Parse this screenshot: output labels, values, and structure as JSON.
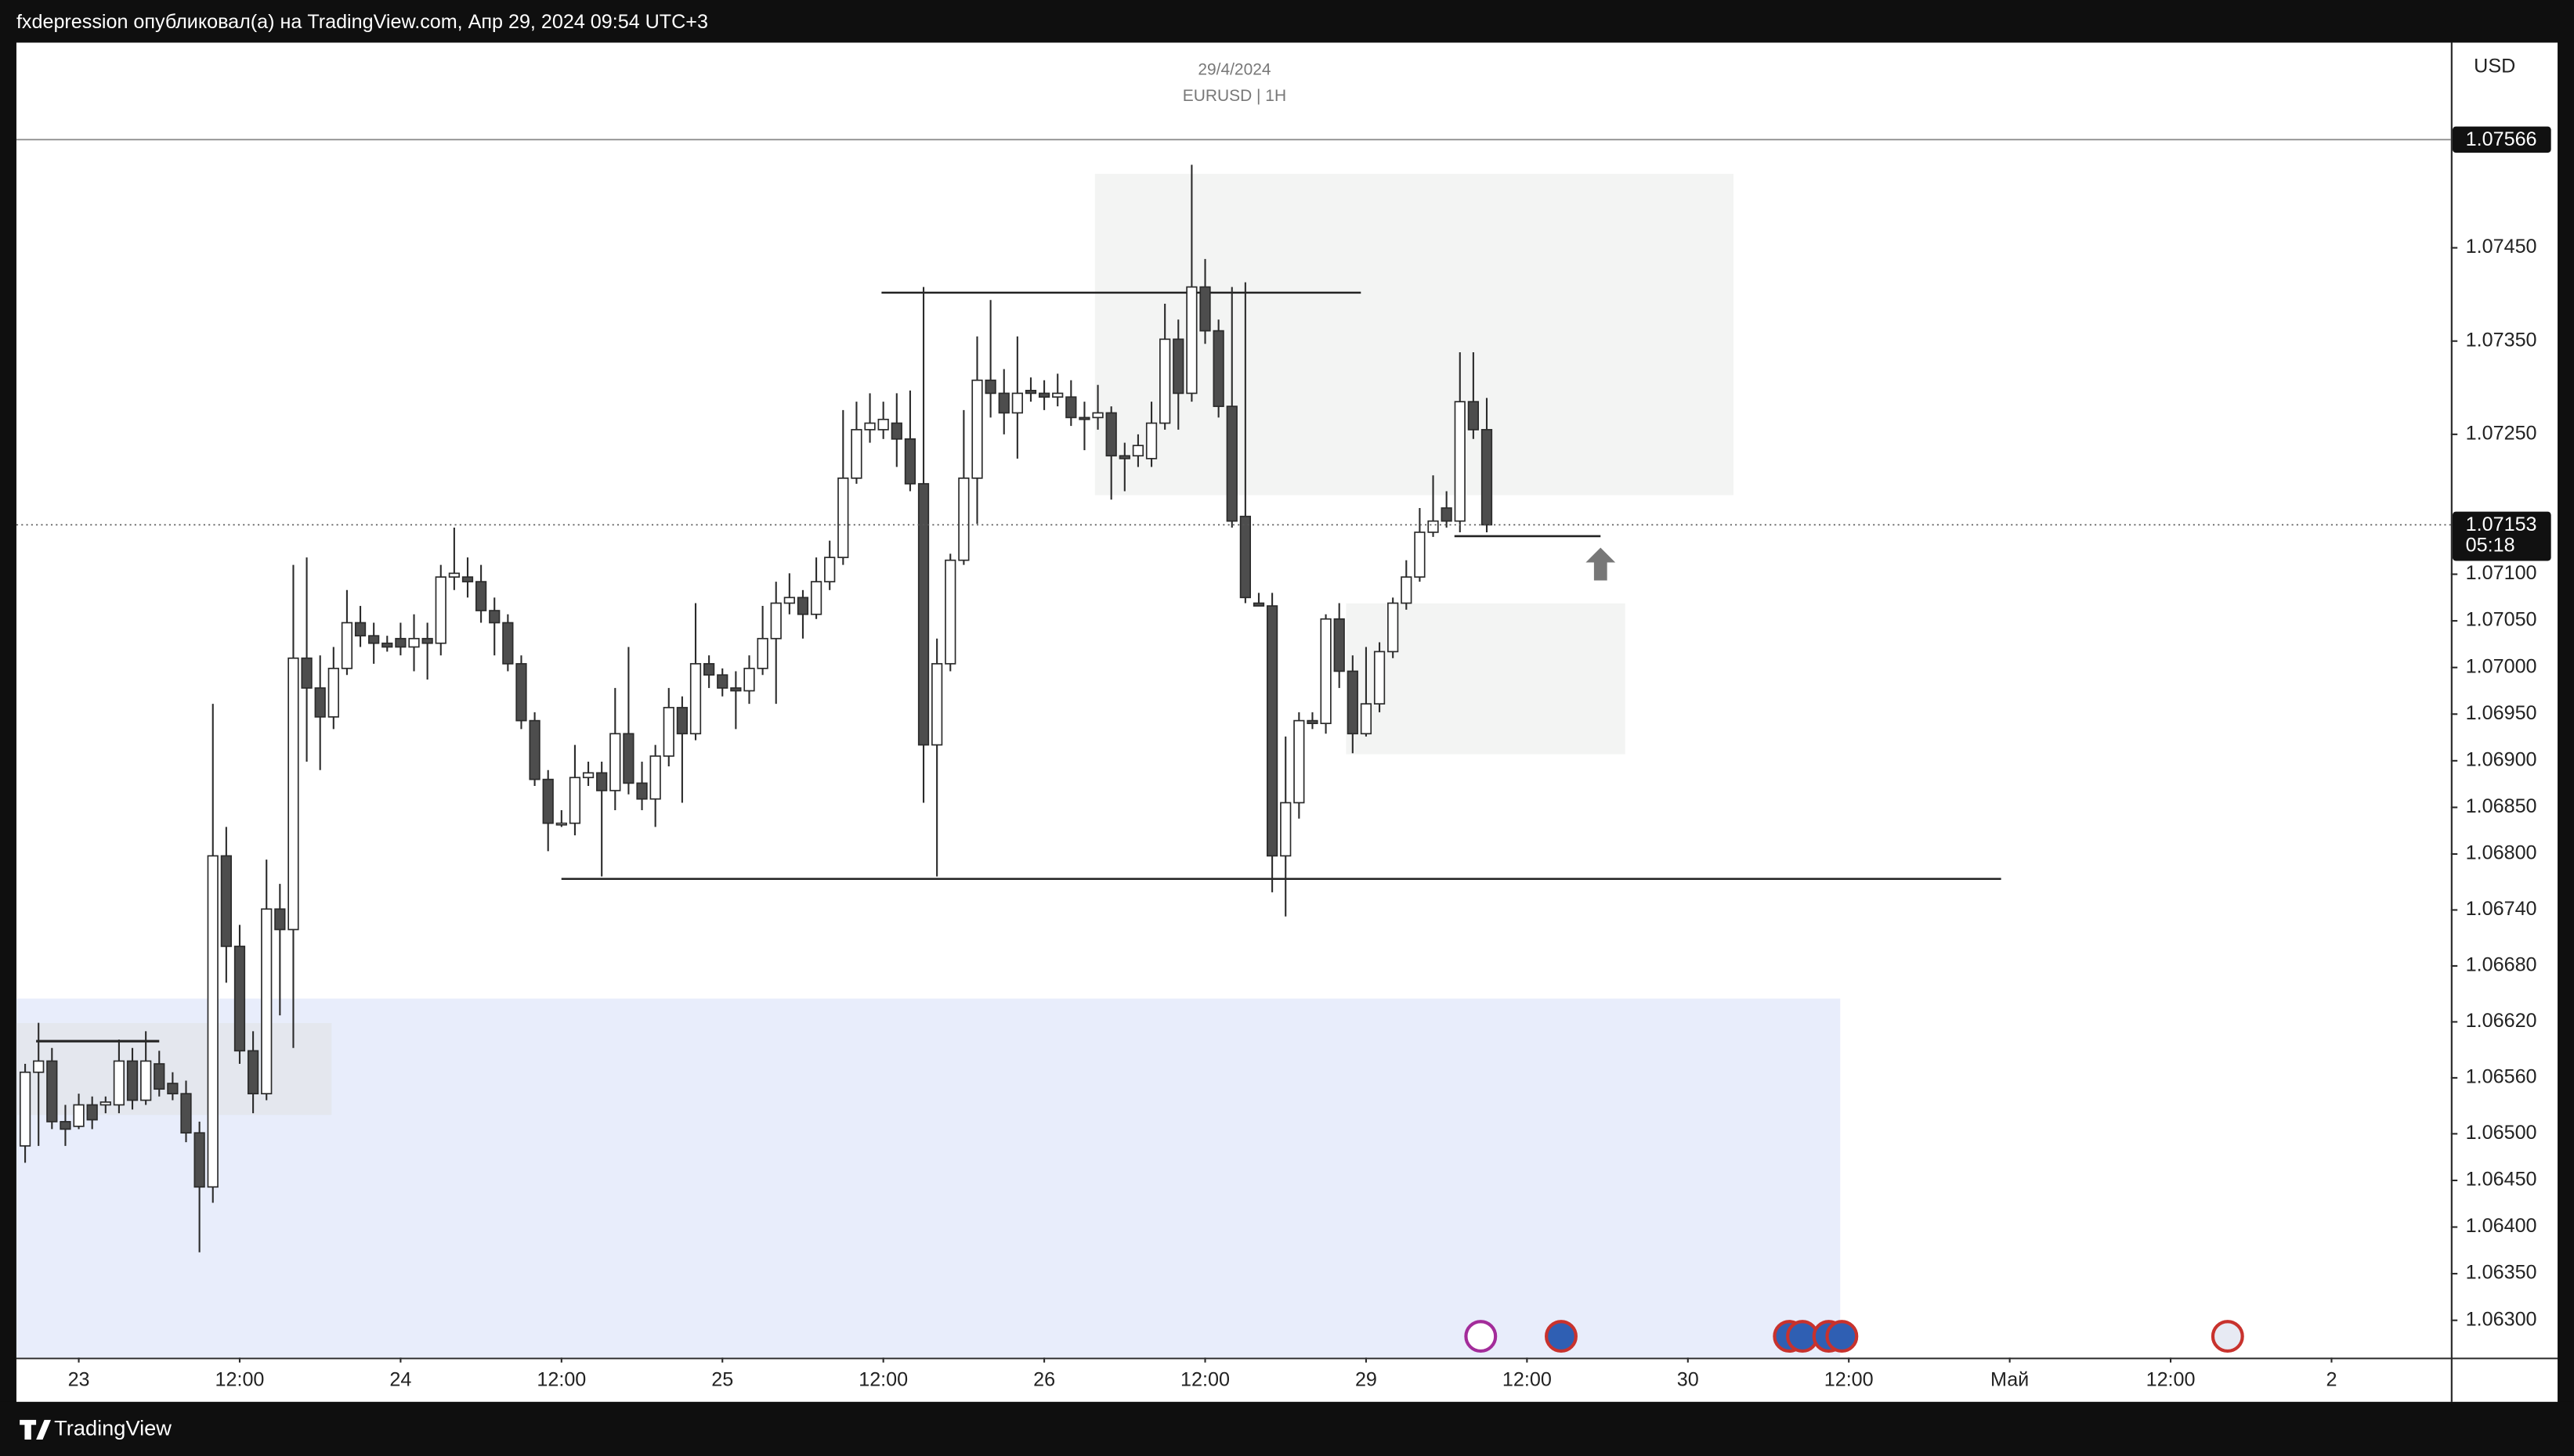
{
  "header": {
    "text": "fxdepression опубликовал(а) на TradingView.com, Апр 29, 2024 09:54 UTC+3"
  },
  "footer": {
    "brand": "TradingView"
  },
  "chart_data": {
    "type": "candlestick",
    "title": "29/4/2024",
    "subtitle": "EURUSD | 1H",
    "currency": "USD",
    "up_color": "#ffffff",
    "down_color": "#4d4d4d",
    "wick_color": "#2b2b2b",
    "grid": false,
    "xlim": [
      -4.65,
      176.9
    ],
    "ylim": [
      1.0626,
      1.0767
    ],
    "xticks": [
      {
        "value": 0,
        "label": "23"
      },
      {
        "value": 12,
        "label": "12:00"
      },
      {
        "value": 24,
        "label": "24"
      },
      {
        "value": 36,
        "label": "12:00"
      },
      {
        "value": 48,
        "label": "25"
      },
      {
        "value": 60,
        "label": "12:00"
      },
      {
        "value": 72,
        "label": "26"
      },
      {
        "value": 84,
        "label": "12:00"
      },
      {
        "value": 96,
        "label": "29"
      },
      {
        "value": 108,
        "label": "12:00"
      },
      {
        "value": 120,
        "label": "30"
      },
      {
        "value": 132,
        "label": "12:00"
      },
      {
        "value": 144,
        "label": "Май"
      },
      {
        "value": 156,
        "label": "12:00"
      },
      {
        "value": 168,
        "label": "2"
      }
    ],
    "yticks": [
      {
        "value": 1.0745,
        "label": "1.07450"
      },
      {
        "value": 1.0735,
        "label": "1.07350"
      },
      {
        "value": 1.0725,
        "label": "1.07250"
      },
      {
        "value": 1.071,
        "label": "1.07100"
      },
      {
        "value": 1.0705,
        "label": "1.07050"
      },
      {
        "value": 1.07,
        "label": "1.07000"
      },
      {
        "value": 1.0695,
        "label": "1.06950"
      },
      {
        "value": 1.069,
        "label": "1.06900"
      },
      {
        "value": 1.0685,
        "label": "1.06850"
      },
      {
        "value": 1.068,
        "label": "1.06800"
      },
      {
        "value": 1.0674,
        "label": "1.06740"
      },
      {
        "value": 1.0668,
        "label": "1.06680"
      },
      {
        "value": 1.0662,
        "label": "1.06620"
      },
      {
        "value": 1.0656,
        "label": "1.06560"
      },
      {
        "value": 1.065,
        "label": "1.06500"
      },
      {
        "value": 1.0645,
        "label": "1.06450"
      },
      {
        "value": 1.064,
        "label": "1.06400"
      },
      {
        "value": 1.0635,
        "label": "1.06350"
      },
      {
        "value": 1.063,
        "label": "1.06300"
      }
    ],
    "price_line": {
      "value": 1.07566,
      "label": "1.07566"
    },
    "last_price": {
      "value": 1.07153,
      "label": "1.07153",
      "countdown": "05:18"
    },
    "x": [
      -4,
      -3,
      -2,
      -1,
      0,
      1,
      2,
      3,
      4,
      5,
      6,
      7,
      8,
      9,
      10,
      11,
      12,
      13,
      14,
      15,
      16,
      17,
      18,
      19,
      20,
      21,
      22,
      23,
      24,
      25,
      26,
      27,
      28,
      29,
      30,
      31,
      32,
      33,
      34,
      35,
      36,
      37,
      38,
      39,
      40,
      41,
      42,
      43,
      44,
      45,
      46,
      47,
      48,
      49,
      50,
      51,
      52,
      53,
      54,
      55,
      56,
      57,
      58,
      59,
      60,
      61,
      62,
      63,
      64,
      65,
      66,
      67,
      68,
      69,
      70,
      71,
      72,
      73,
      74,
      75,
      76,
      77,
      78,
      79,
      80,
      81,
      82,
      83,
      84,
      85,
      86,
      87,
      88,
      89,
      90,
      91,
      92,
      93,
      94,
      95,
      96,
      97,
      98,
      99,
      100,
      101,
      102,
      103,
      104,
      105
    ],
    "open": [
      1.06487,
      1.06566,
      1.06578,
      1.06513,
      1.06508,
      1.06531,
      1.06531,
      1.06531,
      1.06578,
      1.06536,
      1.06575,
      1.06554,
      1.06543,
      1.06501,
      1.06443,
      1.06798,
      1.06701,
      1.06589,
      1.06543,
      1.06741,
      1.06719,
      1.0701,
      1.06978,
      1.06947,
      1.06999,
      1.07048,
      1.07034,
      1.07026,
      1.07031,
      1.07022,
      1.07031,
      1.07026,
      1.07097,
      1.07097,
      1.07092,
      1.07061,
      1.07048,
      1.07004,
      1.06943,
      1.0688,
      1.06833,
      1.06833,
      1.06882,
      1.06887,
      1.06868,
      1.06929,
      1.06876,
      1.06859,
      1.06905,
      1.06957,
      1.06929,
      1.07004,
      1.06992,
      1.06978,
      1.06975,
      1.06999,
      1.07031,
      1.07069,
      1.07075,
      1.07057,
      1.07092,
      1.07118,
      1.07203,
      1.07255,
      1.07255,
      1.07262,
      1.07245,
      1.07197,
      1.06917,
      1.07004,
      1.07115,
      1.07203,
      1.07308,
      1.07294,
      1.07273,
      1.07297,
      1.07294,
      1.0729,
      1.0729,
      1.07268,
      1.07268,
      1.07273,
      1.07227,
      1.07227,
      1.07224,
      1.07262,
      1.07352,
      1.07294,
      1.07408,
      1.07361,
      1.0728,
      1.07162,
      1.07069,
      1.07066,
      1.06798,
      1.06855,
      1.06943,
      1.0694,
      1.07052,
      1.06996,
      1.06929,
      1.06961,
      1.07017,
      1.07069,
      1.07097,
      1.07145,
      1.07171,
      1.07157,
      1.07285,
      1.07255
    ],
    "high": [
      1.06575,
      1.06619,
      1.06592,
      1.06531,
      1.06543,
      1.0654,
      1.0654,
      1.06601,
      1.06592,
      1.0661,
      1.06589,
      1.06566,
      1.06557,
      1.06513,
      1.06961,
      1.06829,
      1.06724,
      1.0661,
      1.06794,
      1.06768,
      1.0711,
      1.07118,
      1.07013,
      1.07022,
      1.07083,
      1.07066,
      1.07048,
      1.07034,
      1.07048,
      1.07057,
      1.07048,
      1.0711,
      1.0715,
      1.07118,
      1.0711,
      1.07075,
      1.07057,
      1.07013,
      1.06952,
      1.0689,
      1.06847,
      1.06917,
      1.06899,
      1.06899,
      1.06978,
      1.07022,
      1.06899,
      1.06917,
      1.06978,
      1.06969,
      1.07069,
      1.07013,
      1.06999,
      1.06996,
      1.07013,
      1.07066,
      1.07092,
      1.07101,
      1.07083,
      1.07118,
      1.07136,
      1.07276,
      1.07285,
      1.07294,
      1.07285,
      1.07294,
      1.07297,
      1.07408,
      1.07031,
      1.07122,
      1.07276,
      1.07355,
      1.07394,
      1.0732,
      1.07355,
      1.07311,
      1.07308,
      1.07315,
      1.07308,
      1.07285,
      1.07303,
      1.0728,
      1.07241,
      1.0725,
      1.07285,
      1.0739,
      1.07373,
      1.07539,
      1.07438,
      1.07373,
      1.07408,
      1.07413,
      1.0708,
      1.0708,
      1.06926,
      1.06952,
      1.06952,
      1.07057,
      1.07069,
      1.07013,
      1.07022,
      1.07027,
      1.07075,
      1.07115,
      1.07171,
      1.07206,
      1.07189,
      1.07338,
      1.07338,
      1.07289
    ],
    "low": [
      1.06469,
      1.06487,
      1.06505,
      1.06487,
      1.06505,
      1.06505,
      1.06522,
      1.06522,
      1.06526,
      1.06531,
      1.0654,
      1.06536,
      1.06491,
      1.06373,
      1.06426,
      1.06662,
      1.06575,
      1.06522,
      1.06536,
      1.06627,
      1.06592,
      1.06899,
      1.0689,
      1.06934,
      1.06992,
      1.07022,
      1.07004,
      1.07017,
      1.07013,
      1.06996,
      1.06987,
      1.07013,
      1.07083,
      1.07075,
      1.07048,
      1.07013,
      1.06996,
      1.06934,
      1.06873,
      1.06803,
      1.06829,
      1.0682,
      1.06873,
      1.06776,
      1.06847,
      1.06864,
      1.06847,
      1.06829,
      1.06894,
      1.06855,
      1.06922,
      1.06978,
      1.06969,
      1.06934,
      1.06961,
      1.06992,
      1.06961,
      1.07057,
      1.07031,
      1.07052,
      1.07083,
      1.0711,
      1.07197,
      1.07241,
      1.07245,
      1.07215,
      1.07189,
      1.06855,
      1.06776,
      1.06996,
      1.0711,
      1.07154,
      1.07268,
      1.0725,
      1.07224,
      1.07285,
      1.07276,
      1.0728,
      1.07259,
      1.07233,
      1.07255,
      1.0718,
      1.07189,
      1.07215,
      1.07215,
      1.07255,
      1.07255,
      1.07285,
      1.07347,
      1.07268,
      1.0715,
      1.07069,
      1.07066,
      1.06759,
      1.06733,
      1.06838,
      1.06934,
      1.06929,
      1.06978,
      1.06908,
      1.06926,
      1.06952,
      1.0701,
      1.07062,
      1.07092,
      1.0714,
      1.0715,
      1.07145,
      1.07245,
      1.07145
    ],
    "close": [
      1.06566,
      1.06578,
      1.06513,
      1.06505,
      1.06531,
      1.06515,
      1.06534,
      1.06578,
      1.06536,
      1.06578,
      1.06548,
      1.06543,
      1.06501,
      1.06443,
      1.06798,
      1.06701,
      1.06589,
      1.06543,
      1.06741,
      1.06719,
      1.0701,
      1.06978,
      1.06947,
      1.06999,
      1.07048,
      1.07034,
      1.07026,
      1.07022,
      1.07022,
      1.07031,
      1.07026,
      1.07097,
      1.07101,
      1.07092,
      1.07061,
      1.07048,
      1.07004,
      1.06943,
      1.0688,
      1.06833,
      1.06833,
      1.06882,
      1.06887,
      1.06868,
      1.06929,
      1.06876,
      1.06859,
      1.06905,
      1.06957,
      1.06929,
      1.07004,
      1.06992,
      1.06978,
      1.06975,
      1.06999,
      1.07031,
      1.07069,
      1.07075,
      1.07057,
      1.07092,
      1.07118,
      1.07203,
      1.07255,
      1.07262,
      1.07266,
      1.07245,
      1.07197,
      1.06917,
      1.07004,
      1.07115,
      1.07203,
      1.07308,
      1.07294,
      1.07273,
      1.07294,
      1.07294,
      1.0729,
      1.07294,
      1.07268,
      1.07266,
      1.07273,
      1.07227,
      1.07224,
      1.07238,
      1.07262,
      1.07352,
      1.07294,
      1.07408,
      1.07361,
      1.0728,
      1.07157,
      1.07075,
      1.07066,
      1.06798,
      1.06855,
      1.06943,
      1.0694,
      1.07052,
      1.06996,
      1.06929,
      1.06961,
      1.07017,
      1.07069,
      1.07097,
      1.07145,
      1.07157,
      1.07157,
      1.07285,
      1.07255,
      1.07153
    ]
  }
}
